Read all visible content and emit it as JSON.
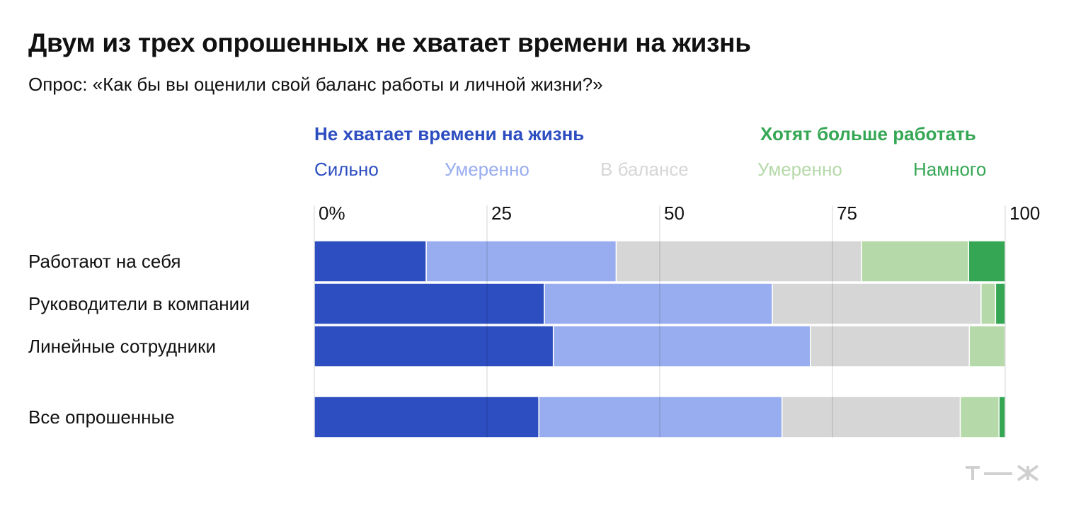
{
  "title": "Двум из трех опрошенных не хватает времени на жизнь",
  "subtitle": "Опрос: «Как бы вы оценили свой баланс работы и личной жизни?»",
  "legend_groups": {
    "left": {
      "label": "Не хватает времени на жизнь",
      "color": "#2d4ec0"
    },
    "right": {
      "label": "Хотят больше работать",
      "color": "#35a754"
    }
  },
  "legend_items": [
    {
      "label": "Сильно",
      "color": "#2d4ec0"
    },
    {
      "label": "Умеренно",
      "color": "#98adef"
    },
    {
      "label": "В балансе",
      "color": "#d6d6d6"
    },
    {
      "label": "Умеренно",
      "color": "#b6d9a9"
    },
    {
      "label": "Намного",
      "color": "#35a754"
    }
  ],
  "chart_data": {
    "type": "bar",
    "orientation": "horizontal",
    "stacked": true,
    "categories": [
      "Работают на себя",
      "Руководители в компании",
      "Линейные сотрудники",
      "Все опрошенные"
    ],
    "series": [
      {
        "name": "Сильно",
        "values": [
          16.2,
          33.3,
          34.6,
          32.5
        ],
        "color": "#2d4ec0"
      },
      {
        "name": "Умеренно",
        "values": [
          27.5,
          33.0,
          37.2,
          35.2
        ],
        "color": "#98adef"
      },
      {
        "name": "В балансе",
        "values": [
          35.5,
          30.2,
          23.0,
          25.8
        ],
        "color": "#d6d6d6"
      },
      {
        "name": "Умеренно",
        "values": [
          15.5,
          2.1,
          5.2,
          5.6
        ],
        "color": "#b6d9a9"
      },
      {
        "name": "Намного",
        "values": [
          5.3,
          1.4,
          0.0,
          0.9
        ],
        "color": "#35a754"
      }
    ],
    "x_ticks": [
      "0%",
      "25",
      "50",
      "75",
      "100"
    ],
    "xlim": [
      0,
      100
    ],
    "grid": true
  },
  "logo": "Т—Ж"
}
